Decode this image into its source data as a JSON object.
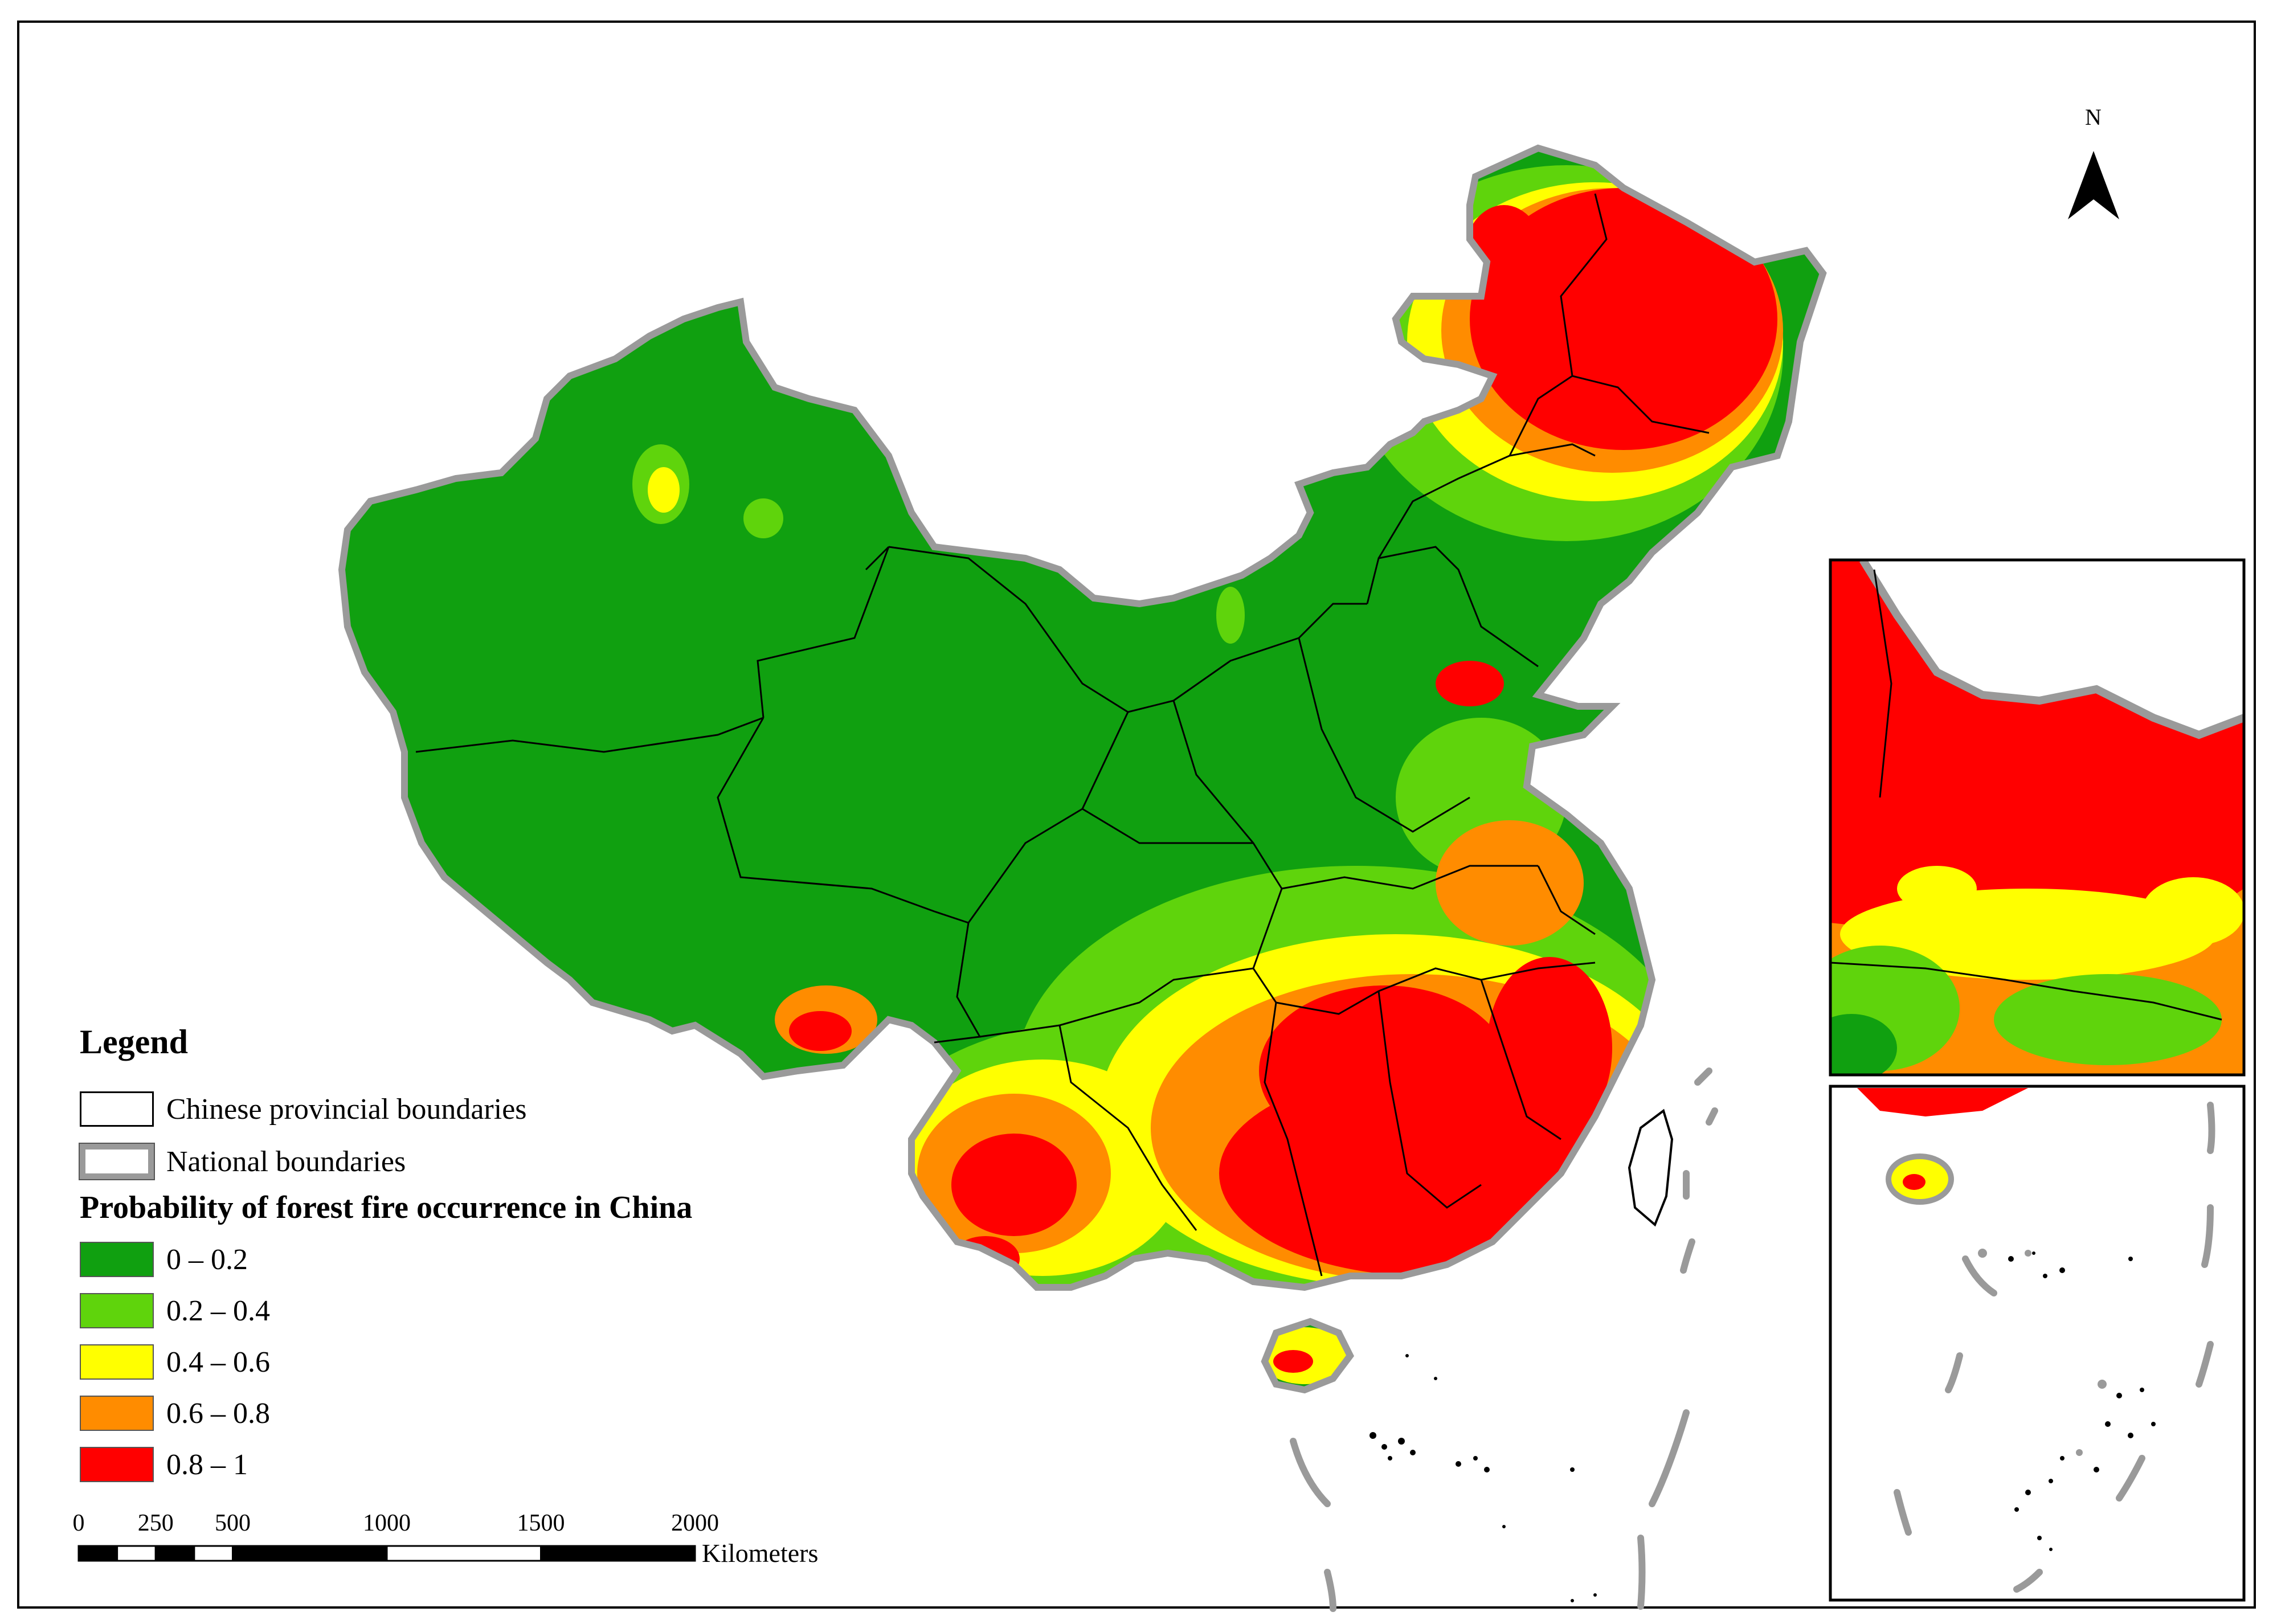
{
  "legend": {
    "title": "Legend",
    "boundary_items": [
      {
        "label": "Chinese provincial boundaries"
      },
      {
        "label": "National  boundaries"
      }
    ],
    "probability_heading": "Probability of forest fire occurrence in China",
    "classes": [
      {
        "label": "0 – 0.2",
        "color": "#10a010"
      },
      {
        "label": "0.2 – 0.4",
        "color": "#5fd40c"
      },
      {
        "label": "0.4 – 0.6",
        "color": "#ffff00"
      },
      {
        "label": "0.6 – 0.8",
        "color": "#ff8c00"
      },
      {
        "label": "0.8 – 1",
        "color": "#ff0000"
      }
    ]
  },
  "north_arrow": {
    "label": "N",
    "icon": "north-arrow-icon"
  },
  "scale_bar": {
    "tick_labels": [
      "0",
      "250",
      "500",
      "1000",
      "1500",
      "2000"
    ],
    "tick_values": [
      0,
      250,
      500,
      1000,
      1500,
      2000
    ],
    "unit": "Kilometers"
  },
  "colors": {
    "provincial_boundary": "#000000",
    "national_boundary": "#9a9a9a"
  }
}
